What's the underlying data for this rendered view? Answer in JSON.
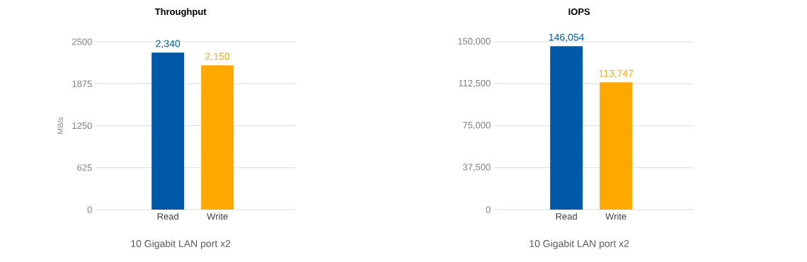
{
  "chart_data": [
    {
      "type": "bar",
      "title": "Throughput",
      "xlabel": "10 Gigabit LAN port x2",
      "ylabel": "MB/s",
      "categories": [
        "Read",
        "Write"
      ],
      "values": [
        2340,
        2150
      ],
      "colors": [
        "#0059a8",
        "#ffa800"
      ],
      "value_labels": [
        "2,340",
        "2,150"
      ],
      "ylim": [
        0,
        2500
      ],
      "yticks": [
        0,
        625,
        1250,
        1875,
        2500
      ],
      "grid": "y"
    },
    {
      "type": "bar",
      "title": "IOPS",
      "xlabel": "10 Gigabit LAN port x2",
      "categories": [
        "Read",
        "Write"
      ],
      "values": [
        146054,
        113747
      ],
      "colors": [
        "#0059a8",
        "#ffa800"
      ],
      "value_labels": [
        "146,054",
        "113,747"
      ],
      "ylim": [
        0,
        150000
      ],
      "yticks": [
        0,
        {
          "value": 37500,
          "label": "37,500"
        },
        {
          "value": 75000,
          "label": "75,000"
        },
        {
          "value": 112500,
          "label": "112,500"
        },
        {
          "value": 150000,
          "label": "150,000"
        }
      ],
      "grid": "y"
    }
  ]
}
